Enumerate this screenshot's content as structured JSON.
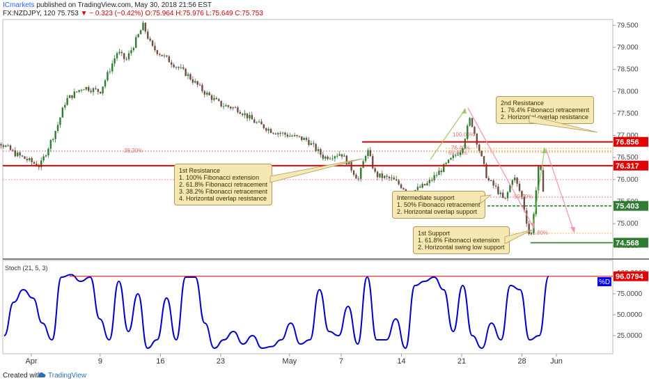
{
  "header": {
    "publisher": "ICmarkets",
    "rest": " published on TradingView.com, May 30, 2018 21:56 EST"
  },
  "symbol_line": {
    "symbol": "FX:NZDJPY, 120",
    "price": "75.753",
    "change": "− 0.323 (−0.42%)",
    "ohlc": "O:75.964 H:75.976 L:75.649 C:75.753"
  },
  "footer": {
    "created_with": "Created with",
    "brand": "TradingView"
  },
  "colors": {
    "bull": "#2e7d32",
    "bear": "#6d4c41",
    "resistance": "#e60000",
    "support": "#2e7d32",
    "stoch": "#0000cc",
    "annotation_bg": "#f6e8b4"
  },
  "annotations": {
    "first_resistance": "1st Resistance\n1. 100% Fibonacci extension\n2. 61.8% Fibonacci retracement\n3. 38.2% Fibonacci retracement\n4. Horizontal overlap resistance",
    "second_resistance": "2nd Resistance\n1. 76.4% Fibonacci retracement\n2. Horizontal overlap resistance",
    "intermediate_support": "Intermediate support\n1. 50% Fibonacci retracement\n2. Horizontal overlap support",
    "first_support": "1st Support\n1. 61.8% Fibonacci extension\n2. Horizontal swing low support"
  },
  "chart_data": [
    {
      "type": "candlestick",
      "symbol": "FX:NZDJPY",
      "interval": "120",
      "ylim": [
        74.2,
        79.6
      ],
      "y_ticks": [
        "79.500",
        "79.000",
        "78.500",
        "78.000",
        "77.500",
        "77.000",
        "76.500",
        "76.000",
        "75.500",
        "75.000",
        "74.500"
      ],
      "x_ticks": [
        "Apr",
        "9",
        "16",
        "23",
        "May",
        "7",
        "14",
        "21",
        "28",
        "Jun"
      ],
      "price_path": [
        {
          "x": "Mar 26",
          "y": 76.7
        },
        {
          "x": "Mar 28",
          "y": 76.9
        },
        {
          "x": "Mar 30",
          "y": 76.6
        },
        {
          "x": "Apr 2",
          "y": 76.3
        },
        {
          "x": "Apr 4",
          "y": 77.2
        },
        {
          "x": "Apr 5",
          "y": 77.8
        },
        {
          "x": "Apr 7",
          "y": 78.1
        },
        {
          "x": "Apr 9",
          "y": 78.0
        },
        {
          "x": "Apr 11",
          "y": 78.9
        },
        {
          "x": "Apr 12",
          "y": 78.7
        },
        {
          "x": "Apr 14",
          "y": 79.5
        },
        {
          "x": "Apr 15",
          "y": 79.0
        },
        {
          "x": "Apr 17",
          "y": 78.7
        },
        {
          "x": "Apr 19",
          "y": 78.4
        },
        {
          "x": "Apr 21",
          "y": 78.0
        },
        {
          "x": "Apr 23",
          "y": 77.7
        },
        {
          "x": "Apr 25",
          "y": 77.6
        },
        {
          "x": "Apr 27",
          "y": 77.3
        },
        {
          "x": "Apr 29",
          "y": 77.1
        },
        {
          "x": "May 1",
          "y": 77.0
        },
        {
          "x": "May 3",
          "y": 76.9
        },
        {
          "x": "May 5",
          "y": 76.5
        },
        {
          "x": "May 7",
          "y": 76.6
        },
        {
          "x": "May 8",
          "y": 76.3
        },
        {
          "x": "May 9",
          "y": 76.0
        },
        {
          "x": "May 10",
          "y": 76.7
        },
        {
          "x": "May 11",
          "y": 76.1
        },
        {
          "x": "May 13",
          "y": 76.0
        },
        {
          "x": "May 15",
          "y": 75.7
        },
        {
          "x": "May 17",
          "y": 75.9
        },
        {
          "x": "May 19",
          "y": 76.3
        },
        {
          "x": "May 21",
          "y": 76.7
        },
        {
          "x": "May 22",
          "y": 77.4
        },
        {
          "x": "May 23",
          "y": 76.7
        },
        {
          "x": "May 24",
          "y": 76.0
        },
        {
          "x": "May 25",
          "y": 75.8
        },
        {
          "x": "May 26",
          "y": 75.5
        },
        {
          "x": "May 27",
          "y": 76.1
        },
        {
          "x": "May 28",
          "y": 75.6
        },
        {
          "x": "May 29",
          "y": 74.6
        },
        {
          "x": "May 30",
          "y": 76.4
        },
        {
          "x": "May 30 21:56",
          "y": 75.753
        }
      ],
      "levels": [
        {
          "name": "2nd Resistance",
          "value": "76.856",
          "color": "#e60000"
        },
        {
          "name": "1st Resistance",
          "value": "76.317",
          "color": "#e60000"
        },
        {
          "name": "Intermediate support",
          "value": "75.403",
          "color": "#2e7d32"
        },
        {
          "name": "1st Support",
          "value": "74.568",
          "color": "#2e7d32"
        }
      ],
      "fib_labels": [
        "38.20%",
        "61.80%",
        "100.00%",
        "50.00%",
        "61.80%",
        "76.40%"
      ]
    },
    {
      "type": "line",
      "title": "Stoch (21, 5, 3)",
      "series": [
        {
          "name": "%D",
          "color": "#0000cc"
        }
      ],
      "ylim": [
        10,
        100
      ],
      "y_ticks": [
        "100.0000",
        "75.0000",
        "50.0000",
        "25.0000"
      ],
      "last_value": "96.0794",
      "values": [
        25,
        65,
        80,
        70,
        40,
        20,
        95,
        98,
        90,
        95,
        45,
        20,
        90,
        30,
        75,
        10,
        20,
        70,
        20,
        95,
        95,
        40,
        10,
        20,
        30,
        15,
        25,
        10,
        12,
        20,
        40,
        15,
        20,
        80,
        30,
        25,
        60,
        15,
        95,
        20,
        20,
        45,
        10,
        85,
        90,
        95,
        80,
        30,
        85,
        25,
        10,
        40,
        20,
        85,
        80,
        20,
        25,
        96
      ]
    }
  ]
}
